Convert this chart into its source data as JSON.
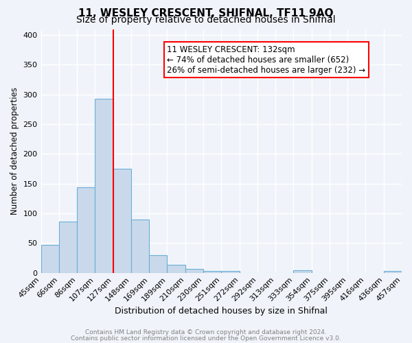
{
  "title": "11, WESLEY CRESCENT, SHIFNAL, TF11 9AQ",
  "subtitle": "Size of property relative to detached houses in Shifnal",
  "xlabel": "Distribution of detached houses by size in Shifnal",
  "ylabel": "Number of detached properties",
  "footer_line1": "Contains HM Land Registry data © Crown copyright and database right 2024.",
  "footer_line2": "Contains public sector information licensed under the Open Government Licence v3.0.",
  "bin_labels": [
    "45sqm",
    "66sqm",
    "86sqm",
    "107sqm",
    "127sqm",
    "148sqm",
    "169sqm",
    "189sqm",
    "210sqm",
    "230sqm",
    "251sqm",
    "272sqm",
    "292sqm",
    "313sqm",
    "333sqm",
    "354sqm",
    "375sqm",
    "395sqm",
    "416sqm",
    "436sqm",
    "457sqm"
  ],
  "bar_heights": [
    47,
    86,
    144,
    293,
    175,
    90,
    30,
    13,
    7,
    3,
    3,
    0,
    0,
    0,
    4,
    0,
    0,
    0,
    0,
    3
  ],
  "bar_color": "#c9d9eb",
  "bar_edge_color": "#6baed6",
  "vline_x": 4,
  "vline_color": "red",
  "annotation_title": "11 WESLEY CRESCENT: 132sqm",
  "annotation_line2": "← 74% of detached houses are smaller (652)",
  "annotation_line3": "26% of semi-detached houses are larger (232) →",
  "annotation_box_color": "white",
  "annotation_box_edge_color": "red",
  "ylim": [
    0,
    410
  ],
  "yticks": [
    0,
    50,
    100,
    150,
    200,
    250,
    300,
    350,
    400
  ],
  "bg_color": "#f0f4fa",
  "plot_bg_color": "#f0f4fa",
  "grid_color": "white",
  "title_fontsize": 11,
  "subtitle_fontsize": 10
}
